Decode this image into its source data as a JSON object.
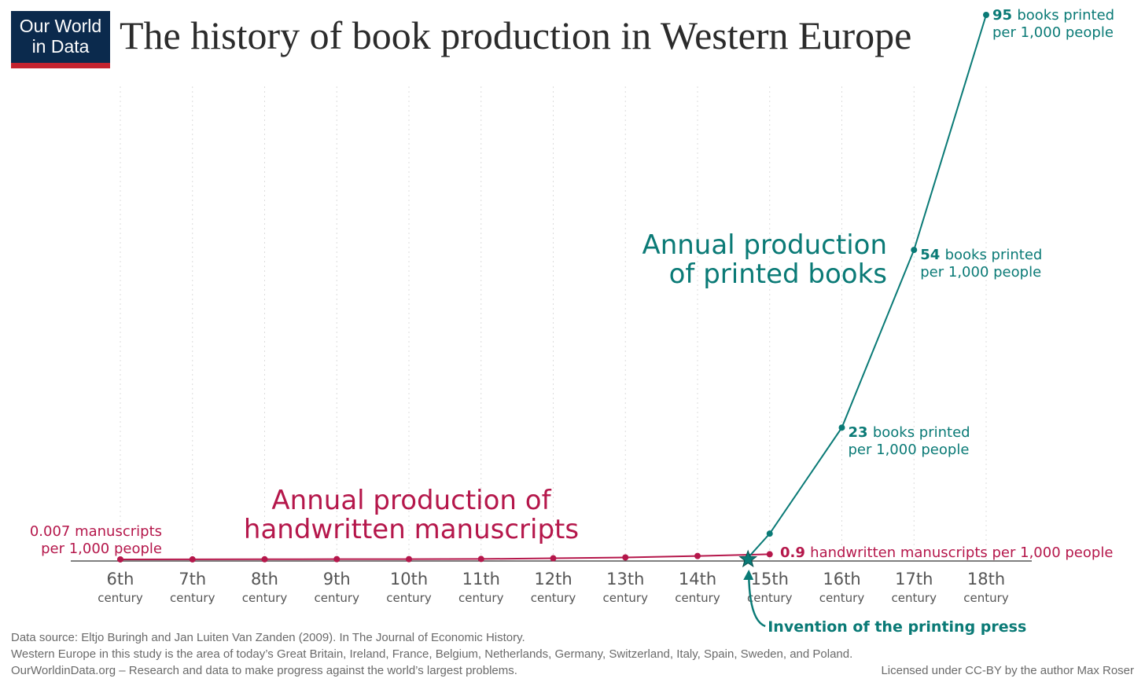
{
  "header": {
    "logo_line1": "Our World",
    "logo_line2": "in Data",
    "title": "The history of book production in Western Europe"
  },
  "footer": {
    "source": "Data source: Eltjo Buringh and Jan Luiten Van Zanden (2009). In The Journal of Economic History.",
    "note": "Western Europe in this study is the area of today’s Great Britain, Ireland, France, Belgium, Netherlands, Germany, Switzerland, Italy, Spain, Sweden, and Poland.",
    "owid": "OurWorldinData.org – Research and data to make progress against the world’s largest problems.",
    "license": "Licensed under CC-BY by the author Max Roser"
  },
  "colors": {
    "manuscripts": "#b5174b",
    "printed": "#0a7a76",
    "grid": "#dcdcdc",
    "axis": "#333333",
    "tick_text": "#555555"
  },
  "chart_data": {
    "type": "line",
    "categories": [
      {
        "num": "6th",
        "word": "century"
      },
      {
        "num": "7th",
        "word": "century"
      },
      {
        "num": "8th",
        "word": "century"
      },
      {
        "num": "9th",
        "word": "century"
      },
      {
        "num": "10th",
        "word": "century"
      },
      {
        "num": "11th",
        "word": "century"
      },
      {
        "num": "12th",
        "word": "century"
      },
      {
        "num": "13th",
        "word": "century"
      },
      {
        "num": "14th",
        "word": "century"
      },
      {
        "num": "15th",
        "word": "century"
      },
      {
        "num": "16th",
        "word": "century"
      },
      {
        "num": "17th",
        "word": "century"
      },
      {
        "num": "18th",
        "word": "century"
      }
    ],
    "ylim": [
      0,
      95
    ],
    "grid": "vertical dotted",
    "series": [
      {
        "key": "manuscripts",
        "label_line1": "Annual production of",
        "label_line2": "handwritten manuscripts",
        "points": [
          {
            "x": 0,
            "y": 0.007
          },
          {
            "x": 1,
            "y": 0.01
          },
          {
            "x": 2,
            "y": 0.03
          },
          {
            "x": 3,
            "y": 0.05
          },
          {
            "x": 4,
            "y": 0.05
          },
          {
            "x": 5,
            "y": 0.08
          },
          {
            "x": 6,
            "y": 0.2
          },
          {
            "x": 7,
            "y": 0.35
          },
          {
            "x": 8,
            "y": 0.6
          },
          {
            "x": 9,
            "y": 0.9
          }
        ]
      },
      {
        "key": "printed",
        "label_line1": "Annual production",
        "label_line2": "of printed books",
        "points": [
          {
            "x": 8.7,
            "y": 0.3
          },
          {
            "x": 9,
            "y": 4.5
          },
          {
            "x": 10,
            "y": 23
          },
          {
            "x": 11,
            "y": 54
          },
          {
            "x": 12,
            "y": 95
          }
        ]
      }
    ],
    "annotations": {
      "manuscript_start": {
        "line1": "0.007 manuscripts",
        "line2": "per 1,000 people"
      },
      "manuscript_end": {
        "value": "0.9",
        "text": "handwritten manuscripts per 1,000 people"
      },
      "printed": [
        {
          "x": 10,
          "value": "23",
          "text": "books printed",
          "line2": "per 1,000 people"
        },
        {
          "x": 11,
          "value": "54",
          "text": "books printed",
          "line2": "per 1,000 people"
        },
        {
          "x": 12,
          "value": "95",
          "text": "books printed",
          "line2": "per 1,000 people"
        }
      ],
      "press": {
        "x": 8.7,
        "label": "Invention of the printing press"
      }
    }
  }
}
